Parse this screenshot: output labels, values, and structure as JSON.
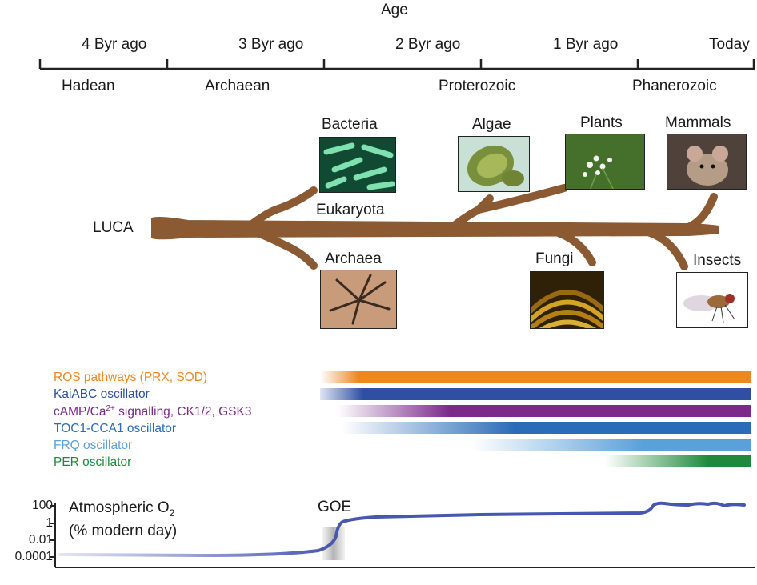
{
  "timeline": {
    "title": "Age",
    "ticks": [
      "4 Byr ago",
      "3 Byr ago",
      "2 Byr ago",
      "1 Byr ago",
      "Today"
    ],
    "eons": [
      "Hadean",
      "Archaean",
      "Proterozoic",
      "Phanerozoic"
    ]
  },
  "tree": {
    "root": "LUCA",
    "eukaryota": "Eukaryota",
    "organisms": {
      "bacteria": "Bacteria",
      "archaea": "Archaea",
      "algae": "Algae",
      "plants": "Plants",
      "fungi": "Fungi",
      "mammals": "Mammals",
      "insects": "Insects"
    }
  },
  "pathways": [
    {
      "label": "ROS pathways (PRX, SOD)",
      "color": "#f0861e"
    },
    {
      "label": "KaiABC oscillator",
      "color": "#2e4fa3"
    },
    {
      "label": "cAMP/Ca",
      "sup": "2+",
      "label_suffix": " signalling, CK1/2, GSK3",
      "color": "#7b2a8c"
    },
    {
      "label": "TOC1-CCA1 oscillator",
      "color": "#2b6cb8"
    },
    {
      "label": "FRQ oscillator",
      "color": "#5aa0da"
    },
    {
      "label": "PER oscillator",
      "color": "#1f8a3c"
    }
  ],
  "oxygen": {
    "title_line1": "Atmospheric O",
    "title_sub": "2",
    "title_line2": "(% modern day)",
    "event_label": "GOE",
    "y_ticks": [
      "100",
      "1",
      "0.01",
      "0.0001"
    ],
    "line_color": "#4657ad"
  },
  "colors": {
    "branch": "#8b5a32",
    "axis": "#222222"
  }
}
